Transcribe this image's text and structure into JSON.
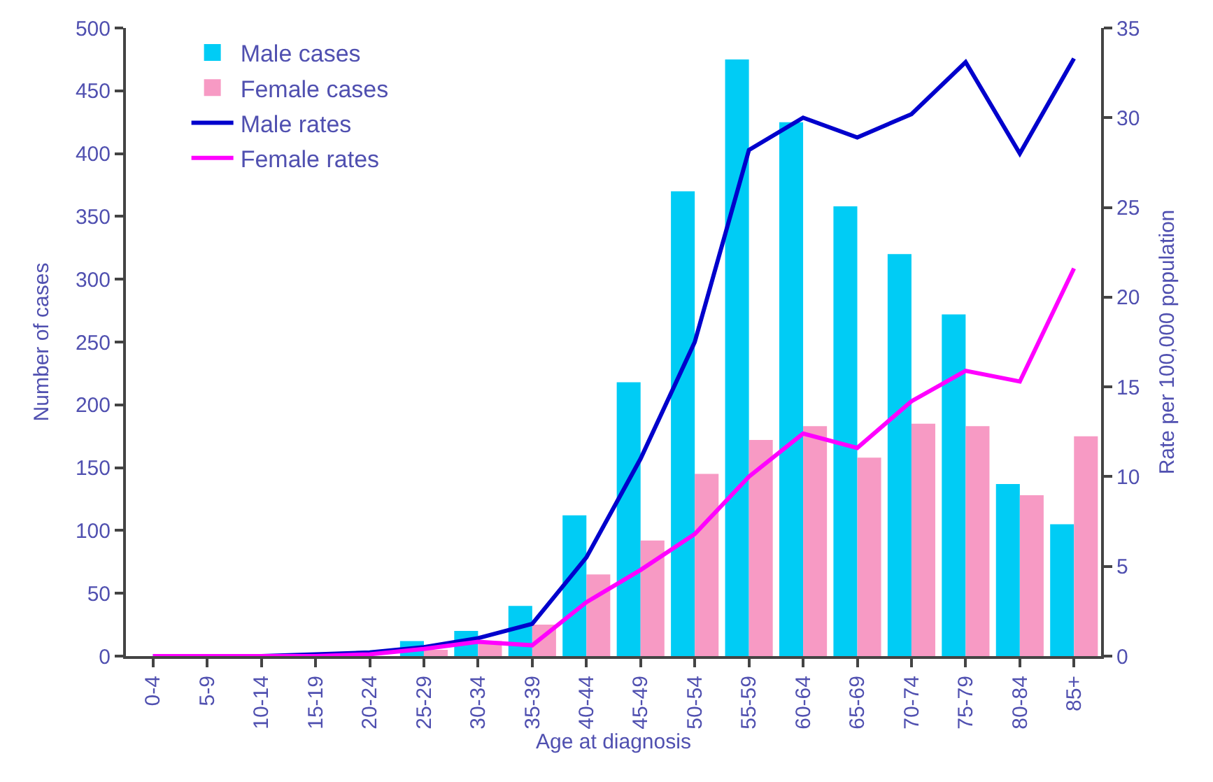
{
  "chart_data": {
    "type": "bar",
    "xlabel": "Age at diagnosis",
    "ylabel": "Number of cases",
    "y2label": "Rate per 100,000 population",
    "categories": [
      "0-4",
      "5-9",
      "10-14",
      "15-19",
      "20-24",
      "25-29",
      "30-34",
      "35-39",
      "40-44",
      "45-49",
      "50-54",
      "55-59",
      "60-64",
      "65-69",
      "70-74",
      "75-79",
      "80-84",
      "85+"
    ],
    "series": [
      {
        "name": "Male cases",
        "color": "#00ccf5",
        "values": [
          0,
          0,
          0,
          null,
          null,
          12,
          20,
          40,
          112,
          218,
          370,
          475,
          425,
          358,
          320,
          272,
          137,
          105
        ]
      },
      {
        "name": "Female cases",
        "color": "#f79ac4",
        "values": [
          0,
          0,
          0,
          0,
          null,
          5,
          12,
          25,
          65,
          92,
          145,
          172,
          183,
          158,
          185,
          183,
          128,
          175
        ]
      },
      {
        "name": "Male rates",
        "type": "line",
        "axis": "y2",
        "color": "#0000cc",
        "values": [
          0,
          0,
          0,
          0.1,
          0.2,
          0.5,
          1,
          1.8,
          5.5,
          11,
          17.5,
          28.2,
          30,
          28.9,
          30.2,
          33.1,
          28,
          33.3
        ]
      },
      {
        "name": "Female rates",
        "type": "line",
        "axis": "y2",
        "color": "#ff00ff",
        "values": [
          0,
          0,
          0,
          0,
          0.1,
          0.4,
          0.8,
          0.6,
          3,
          4.8,
          6.8,
          10,
          12.4,
          11.6,
          14.2,
          15.9,
          15.3,
          21.6
        ]
      }
    ],
    "ylim": [
      0,
      500
    ],
    "yticks": [
      0,
      50,
      100,
      150,
      200,
      250,
      300,
      350,
      400,
      450,
      500
    ],
    "y2lim": [
      0,
      35
    ],
    "y2ticks": [
      0,
      5,
      10,
      15,
      20,
      25,
      30,
      35
    ],
    "legend": "top left",
    "marker": "none",
    "line_style": "solid"
  }
}
